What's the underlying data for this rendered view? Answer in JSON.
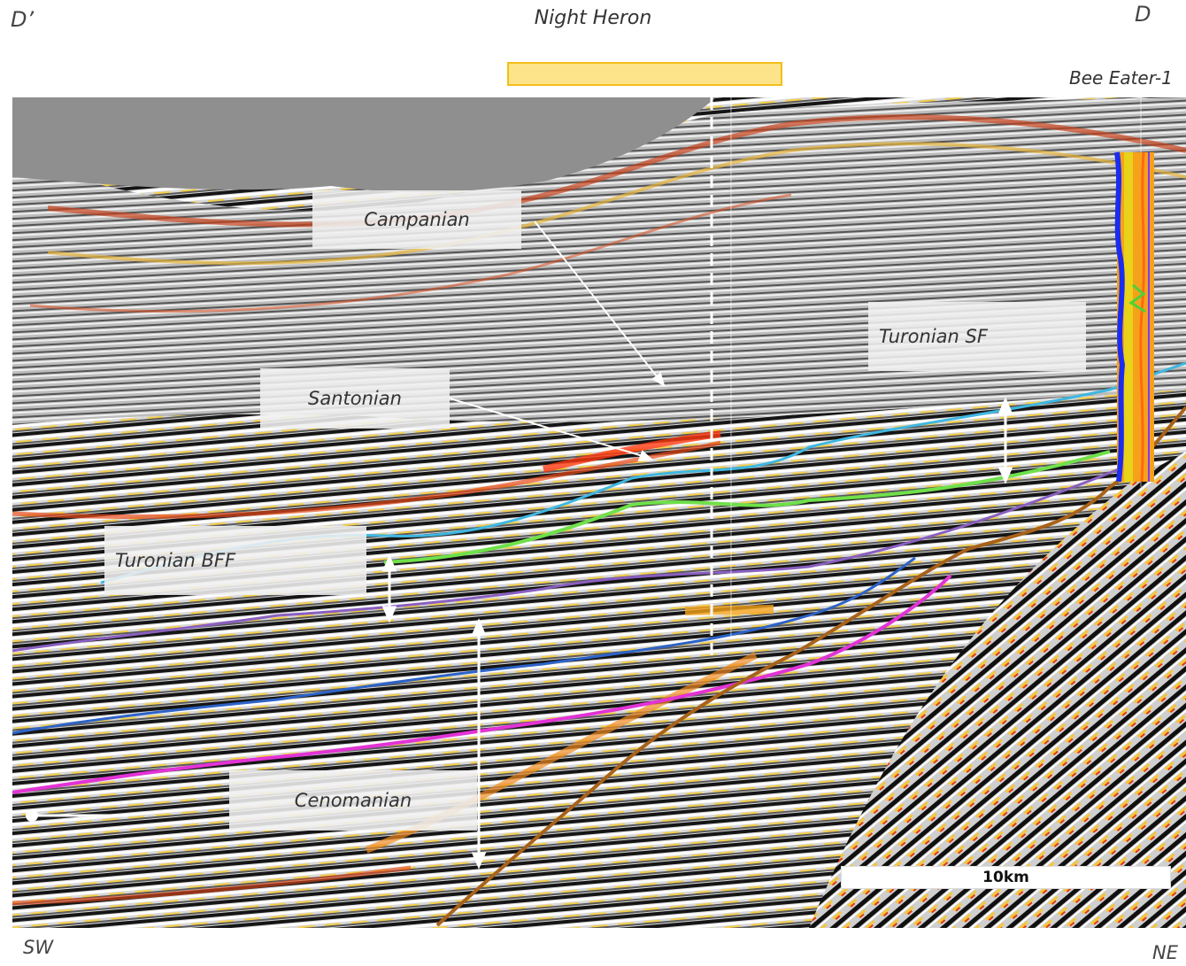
{
  "header": {
    "left_marker": "D’",
    "right_marker": "D",
    "title": "Night Heron",
    "well_label": "Bee Eater-1"
  },
  "footer": {
    "left_direction": "SW",
    "right_direction": "NE"
  },
  "labels": {
    "campanian": "Campanian",
    "santonian": "Santonian",
    "turonian_sf": "Turonian SF",
    "turonian_bff": "Turonian BFF",
    "cenomanian": "Cenomanian"
  },
  "scale": {
    "label": "10km"
  },
  "colors": {
    "horizon_cyan": "#3fb7e0",
    "horizon_green": "#6fe04a",
    "horizon_purple": "#8a5fc0",
    "horizon_blue": "#2d63c8",
    "horizon_magenta": "#e233d6",
    "horizon_brown": "#a8621a",
    "water_grey": "#8f8f8f",
    "highlight_yellow": "#fde38a"
  }
}
